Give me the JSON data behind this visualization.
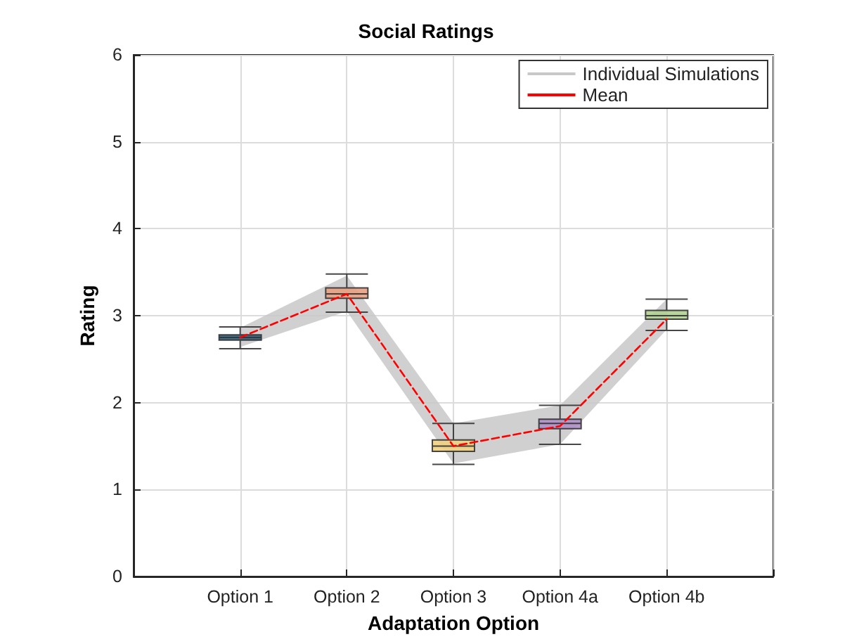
{
  "chart_data": {
    "type": "box",
    "title": "Social Ratings",
    "xlabel": "Adaptation Option",
    "ylabel": "Rating",
    "categories": [
      "Option 1",
      "Option 2",
      "Option 3",
      "Option 4a",
      "Option 4b"
    ],
    "ylim": [
      0,
      6
    ],
    "yticks": [
      0,
      1,
      2,
      3,
      4,
      5,
      6
    ],
    "grid": true,
    "legend": "top right",
    "series": [
      {
        "type": "line",
        "name": "Individual Simulations",
        "color": "#c8c8c8",
        "values": [
          null,
          null,
          null,
          null,
          null
        ],
        "lower": [
          2.64,
          3.05,
          1.3,
          1.52,
          2.84
        ],
        "upper": [
          2.86,
          3.46,
          1.76,
          1.97,
          3.19
        ]
      },
      {
        "type": "box",
        "colors": [
          "#2e5f7f",
          "#e8a080",
          "#f0d080",
          "#b090c8",
          "#b0d090"
        ],
        "boxes": [
          {
            "low": 2.62,
            "q1": 2.72,
            "median": 2.75,
            "q3": 2.78,
            "high": 2.87
          },
          {
            "low": 3.04,
            "q1": 3.2,
            "median": 3.25,
            "q3": 3.32,
            "high": 3.48
          },
          {
            "low": 1.29,
            "q1": 1.44,
            "median": 1.5,
            "q3": 1.57,
            "high": 1.76
          },
          {
            "low": 1.52,
            "q1": 1.7,
            "median": 1.76,
            "q3": 1.81,
            "high": 1.97
          },
          {
            "low": 2.83,
            "q1": 2.96,
            "median": 3.0,
            "q3": 3.06,
            "high": 3.19
          }
        ]
      },
      {
        "type": "line",
        "name": "Mean",
        "color": "#ff0000",
        "line_style": "dashed",
        "marker": "none",
        "values": [
          2.75,
          3.25,
          1.5,
          1.73,
          2.96
        ]
      }
    ]
  }
}
